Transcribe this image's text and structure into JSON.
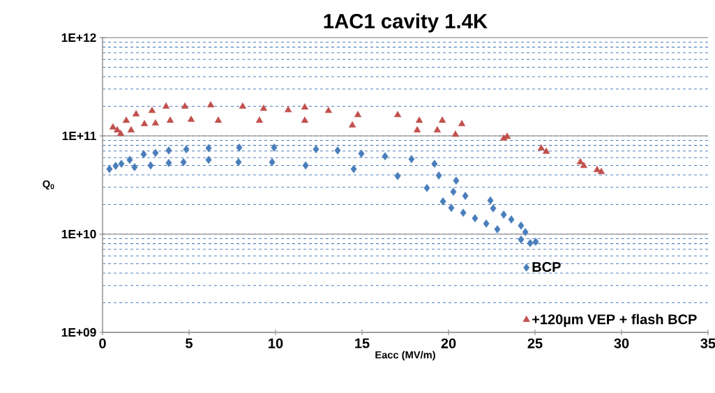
{
  "chart_data": {
    "type": "scatter",
    "title": "1AC1 cavity 1.4K",
    "xlabel": "Eacc (MV/m)",
    "ylabel": "Q$_{0}$",
    "log": "y",
    "grid": "y",
    "legend": "bottom right",
    "xlim": [
      0,
      35
    ],
    "xticks": [
      0,
      5,
      10,
      15,
      20,
      25,
      30,
      35
    ],
    "ylim": [
      1000000000,
      1000000000000
    ],
    "yticks": [
      {
        "value": 1000000000,
        "label": "1E+09"
      },
      {
        "value": 10000000000,
        "label": "1E+10"
      },
      {
        "value": 100000000000,
        "label": "1E+11"
      },
      {
        "value": 1000000000000,
        "label": "1E+12"
      }
    ],
    "series": [
      {
        "name": "BCP",
        "color": "#4a7ebb",
        "marker": "diamond",
        "x": [
          0.4,
          0.76,
          1.09,
          1.57,
          1.85,
          2.38,
          2.78,
          3.06,
          3.83,
          3.83,
          4.84,
          4.68,
          6.13,
          6.13,
          7.9,
          7.86,
          9.92,
          9.8,
          11.74,
          12.34,
          13.59,
          14.52,
          14.96,
          16.33,
          17.06,
          17.86,
          19.19,
          18.75,
          19.44,
          19.68,
          20.44,
          20.28,
          20.97,
          20.16,
          20.85,
          21.53,
          22.18,
          22.82,
          22.42,
          22.58,
          23.19,
          23.63,
          24.19,
          24.44,
          24.19,
          24.72,
          25.04
        ],
        "values": [
          46000000000.0,
          49500000000.0,
          52000000000.0,
          57000000000.0,
          48000000000.0,
          65000000000.0,
          50000000000.0,
          67000000000.0,
          71000000000.0,
          53000000000.0,
          73000000000.0,
          54000000000.0,
          75000000000.0,
          57000000000.0,
          76000000000.0,
          54000000000.0,
          76000000000.0,
          54000000000.0,
          50000000000.0,
          73000000000.0,
          71000000000.0,
          46000000000.0,
          66000000000.0,
          62000000000.0,
          39000000000.0,
          58000000000.0,
          52000000000.0,
          29500000000.0,
          39500000000.0,
          21500000000.0,
          35000000000.0,
          27000000000.0,
          24500000000.0,
          18500000000.0,
          16500000000.0,
          14500000000.0,
          12800000000.0,
          11200000000.0,
          22000000000.0,
          18300000000.0,
          15800000000.0,
          14100000000.0,
          12200000000.0,
          10500000000.0,
          8800000000.0,
          8100000000.0,
          8350000000.0
        ]
      },
      {
        "name": "+120µm VEP + flash BCP",
        "color": "#c0504d",
        "marker": "triangle",
        "x": [
          0.6,
          0.85,
          1.05,
          1.37,
          1.65,
          1.94,
          2.42,
          2.86,
          3.06,
          3.67,
          3.91,
          4.76,
          5.12,
          6.25,
          6.69,
          8.1,
          9.07,
          9.31,
          10.73,
          11.69,
          11.69,
          13.06,
          14.76,
          14.44,
          17.06,
          18.31,
          18.19,
          19.64,
          19.35,
          20.77,
          20.4,
          23.19,
          23.39,
          25.36,
          25.65,
          27.62,
          27.82,
          28.59,
          28.83
        ],
        "values": [
          122000000000.0,
          114000000000.0,
          105000000000.0,
          143000000000.0,
          114000000000.0,
          166000000000.0,
          132000000000.0,
          180000000000.0,
          134000000000.0,
          199000000000.0,
          143000000000.0,
          199000000000.0,
          146000000000.0,
          205000000000.0,
          143000000000.0,
          199000000000.0,
          143000000000.0,
          189000000000.0,
          183000000000.0,
          195000000000.0,
          143000000000.0,
          180000000000.0,
          163000000000.0,
          128000000000.0,
          163000000000.0,
          143000000000.0,
          114000000000.0,
          143000000000.0,
          114000000000.0,
          132000000000.0,
          103000000000.0,
          94000000000.0,
          98000000000.0,
          74500000000.0,
          69000000000.0,
          54000000000.0,
          49500000000.0,
          45000000000.0,
          43000000000.0
        ]
      }
    ]
  }
}
